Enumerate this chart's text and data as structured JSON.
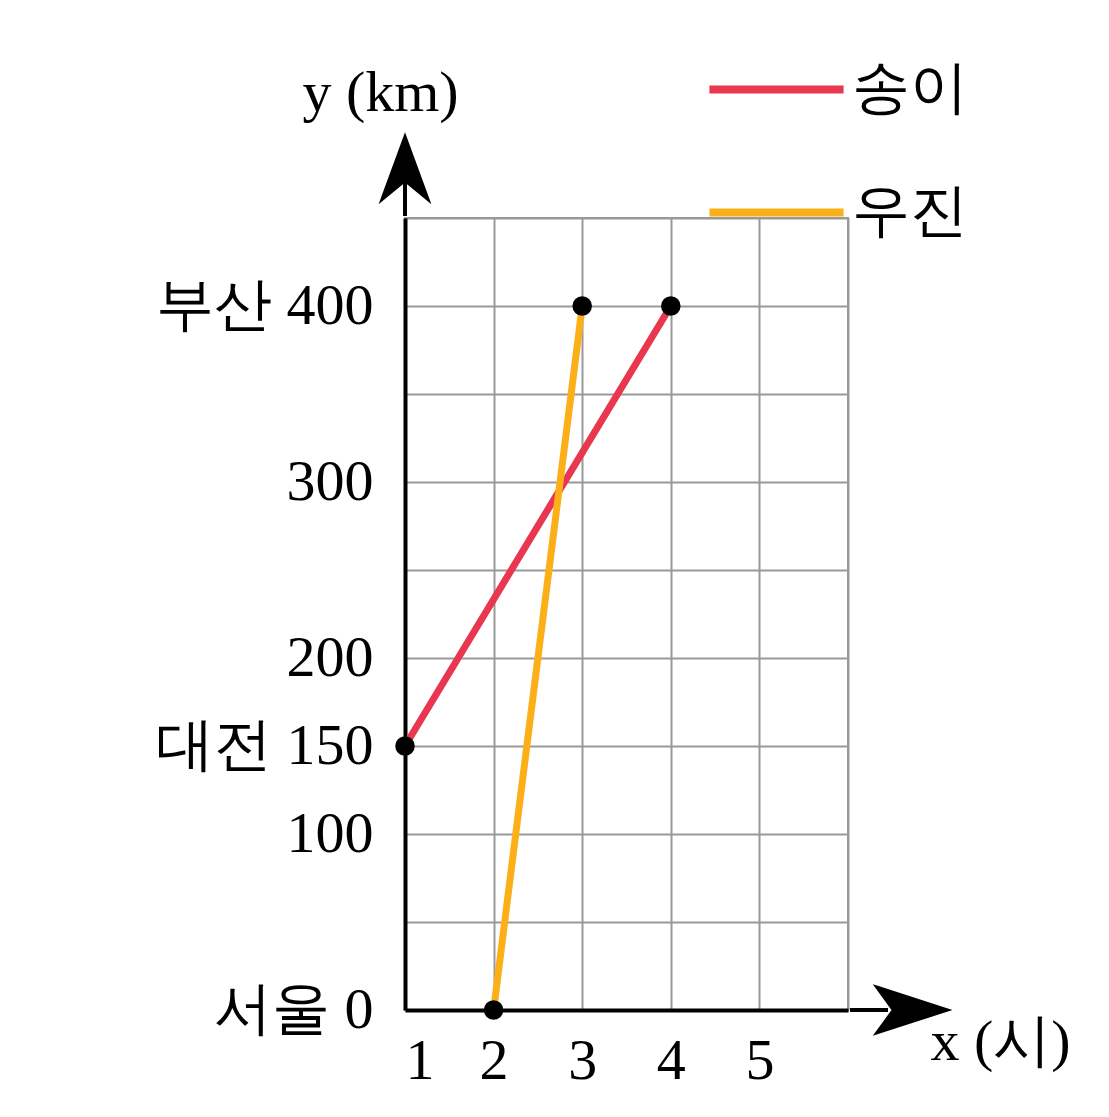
{
  "chart_data": {
    "type": "line",
    "xlabel": "x (시)",
    "ylabel": "y (km)",
    "xlim": [
      1,
      6
    ],
    "xticks": [
      1,
      2,
      3,
      4,
      5,
      {
        "value": 6,
        "label": null
      }
    ],
    "ylim": [
      0,
      450
    ],
    "yticks": [
      {
        "value": 0,
        "label": "서울 0"
      },
      {
        "value": 50,
        "label": null
      },
      100,
      {
        "value": 150,
        "label": "대전 150"
      },
      200,
      {
        "value": 250,
        "label": null
      },
      300,
      {
        "value": 350,
        "label": null
      },
      {
        "value": 400,
        "label": "부산 400"
      },
      {
        "value": 450,
        "label": null
      }
    ],
    "series": [
      {
        "name": "송이",
        "color": "#e8374f",
        "x": [
          1,
          4
        ],
        "values": [
          150,
          400
        ]
      },
      {
        "name": "우진",
        "color": "#fbb01a",
        "x": [
          2,
          3
        ],
        "values": [
          0,
          400
        ]
      }
    ],
    "marker": "circle",
    "grid": true,
    "legend": "top right"
  }
}
